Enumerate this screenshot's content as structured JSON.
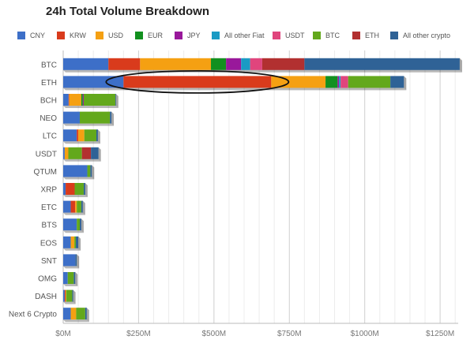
{
  "chart_data": {
    "type": "bar",
    "orientation": "horizontal",
    "stacked": true,
    "title": "24h Total Volume Breakdown",
    "xlabel": "",
    "ylabel": "",
    "xlim": [
      0,
      1310
    ],
    "x_unit": "M USD",
    "x_ticks": [
      0,
      250,
      500,
      750,
      1000,
      1250
    ],
    "x_tick_labels": [
      "$0M",
      "$250M",
      "$500M",
      "$750M",
      "$1000M",
      "$1250M"
    ],
    "grid": true,
    "legend_position": "top",
    "categories": [
      "BTC",
      "ETH",
      "BCH",
      "NEO",
      "LTC",
      "USDT",
      "QTUM",
      "XRP",
      "ETC",
      "BTS",
      "EOS",
      "SNT",
      "OMG",
      "DASH",
      "Next 6 Crypto"
    ],
    "series": [
      {
        "name": "CNY",
        "color": "#3d6fc8",
        "values": [
          150,
          200,
          18,
          55,
          45,
          5,
          80,
          8,
          25,
          45,
          25,
          40,
          15,
          5,
          25
        ]
      },
      {
        "name": "KRW",
        "color": "#d93b1c",
        "values": [
          105,
          490,
          2,
          0,
          5,
          0,
          0,
          30,
          15,
          0,
          0,
          0,
          0,
          3,
          0
        ]
      },
      {
        "name": "USD",
        "color": "#f5a012",
        "values": [
          235,
          180,
          40,
          0,
          20,
          12,
          0,
          0,
          5,
          0,
          12,
          0,
          0,
          2,
          18
        ]
      },
      {
        "name": "EUR",
        "color": "#12901f",
        "values": [
          50,
          40,
          5,
          0,
          0,
          0,
          0,
          0,
          0,
          0,
          0,
          0,
          0,
          0,
          0
        ]
      },
      {
        "name": "JPY",
        "color": "#99189b",
        "values": [
          50,
          5,
          3,
          0,
          0,
          0,
          0,
          0,
          0,
          0,
          0,
          0,
          0,
          0,
          0
        ]
      },
      {
        "name": "All other Fiat",
        "color": "#1a9bc4",
        "values": [
          30,
          5,
          0,
          0,
          0,
          0,
          0,
          0,
          0,
          0,
          0,
          0,
          0,
          0,
          0
        ]
      },
      {
        "name": "USDT",
        "color": "#e0457d",
        "values": [
          40,
          25,
          0,
          0,
          0,
          0,
          0,
          0,
          0,
          0,
          0,
          0,
          0,
          0,
          0
        ]
      },
      {
        "name": "BTC",
        "color": "#63a81c",
        "values": [
          0,
          140,
          105,
          100,
          40,
          45,
          10,
          30,
          15,
          10,
          5,
          0,
          20,
          20,
          30
        ]
      },
      {
        "name": "ETH",
        "color": "#b23030",
        "values": [
          140,
          0,
          0,
          0,
          0,
          30,
          0,
          0,
          0,
          0,
          0,
          0,
          0,
          0,
          0
        ]
      },
      {
        "name": "All other crypto",
        "color": "#2f6296",
        "values": [
          515,
          45,
          2,
          5,
          5,
          25,
          5,
          5,
          5,
          5,
          8,
          5,
          5,
          3,
          5
        ]
      }
    ],
    "annotations": [
      {
        "type": "ellipse",
        "target_category": "ETH",
        "target_series": "KRW"
      }
    ]
  }
}
